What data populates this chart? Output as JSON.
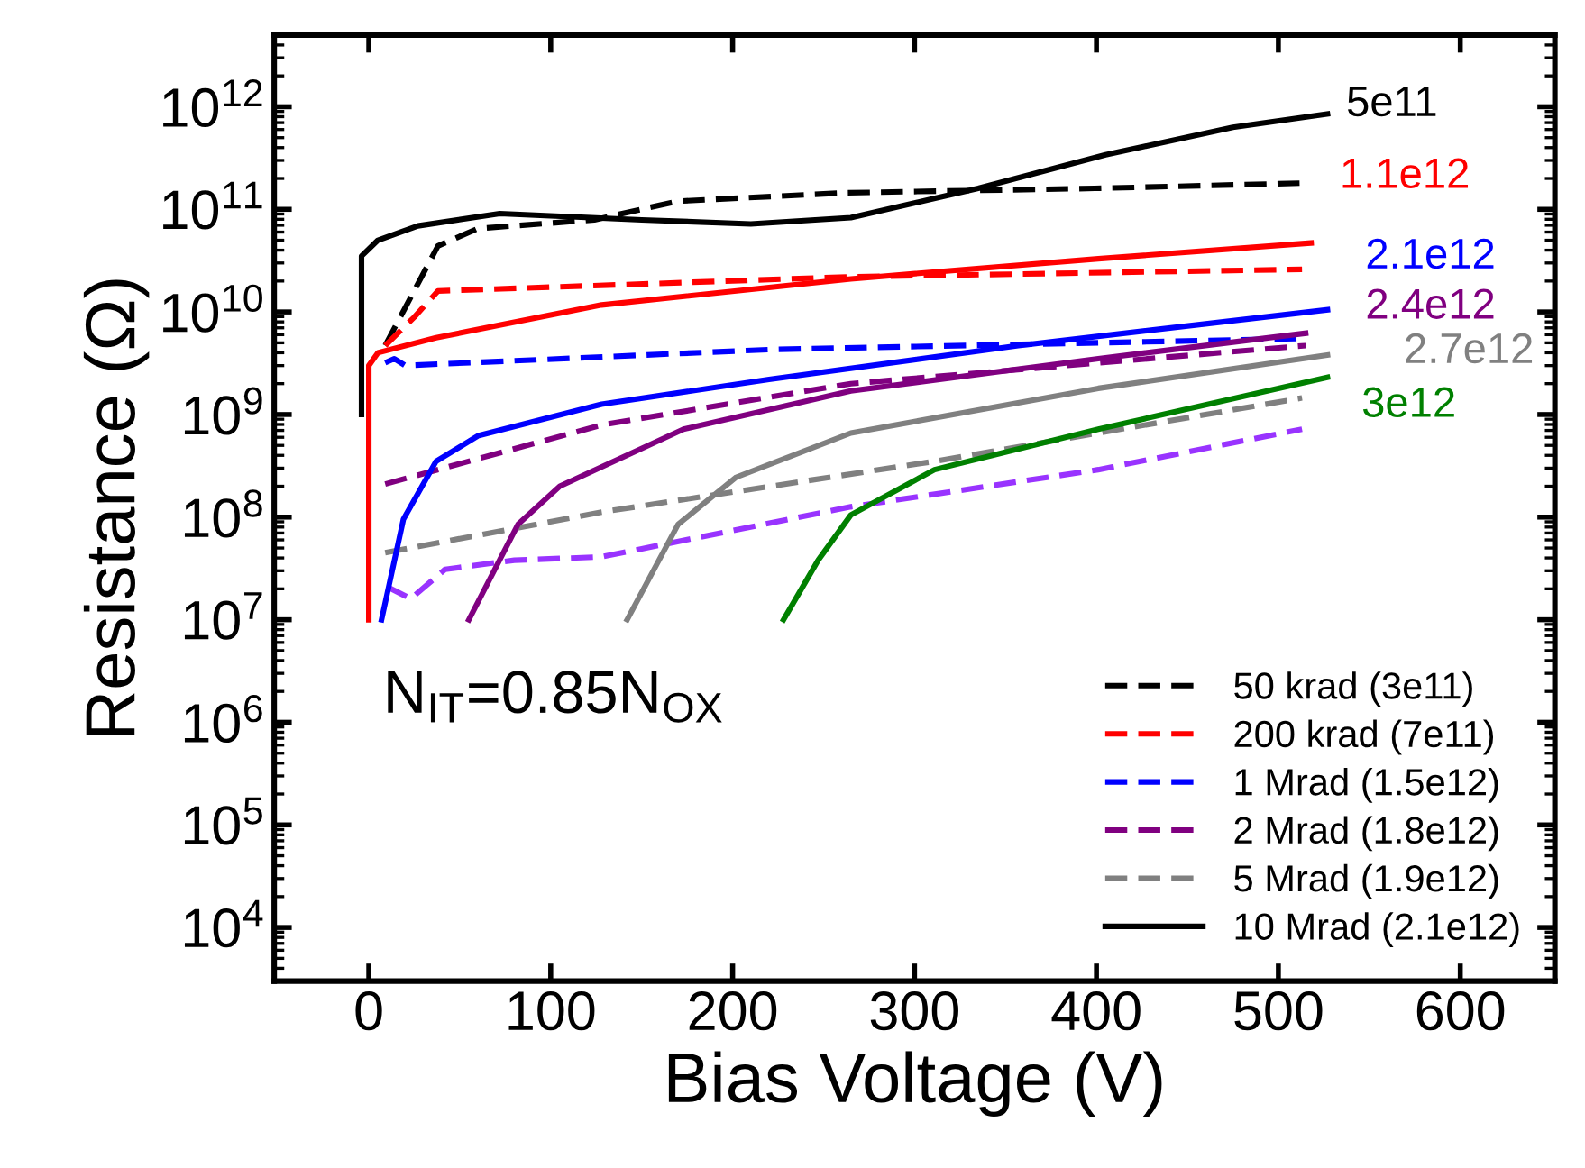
{
  "chart_data": {
    "type": "line",
    "xlabel": "Bias Voltage (V)",
    "ylabel": "Resistance (Ω)",
    "log": "y",
    "grid": false,
    "legend": "bottom right",
    "marker": "none",
    "xlim": [
      -52,
      652
    ],
    "xticks": [
      0,
      100,
      200,
      300,
      400,
      500,
      600
    ],
    "ylim": [
      3000,
      5000000000000
    ],
    "yticks": [
      {
        "value": 10000,
        "label": "10$^{4}$"
      },
      {
        "value": 100000,
        "label": "10$^{5}$"
      },
      {
        "value": 1000000,
        "label": "10$^{6}$"
      },
      {
        "value": 10000000,
        "label": "10$^{7}$"
      },
      {
        "value": 100000000,
        "label": "10$^{8}$"
      },
      {
        "value": 1000000000,
        "label": "10$^{9}$"
      },
      {
        "value": 10000000000,
        "label": "10$^{10}$"
      },
      {
        "value": 100000000000,
        "label": "10$^{11}$"
      },
      {
        "value": 1000000000000,
        "label": "10$^{12}$"
      }
    ],
    "series": [
      {
        "name": "50 krad (3e11)",
        "color": "#000000",
        "line_style": "dashed",
        "x": [
          9,
          38,
          60,
          124,
          170,
          262,
          399,
          513
        ],
        "values": [
          4700000000.0,
          44000000000.0,
          65000000000.0,
          79000000000.0,
          120000000000.0,
          145000000000.0,
          160000000000.0,
          180000000000.0
        ]
      },
      {
        "name": "200 krad (7e11)",
        "color": "#ff0000",
        "line_style": "dashed",
        "x": [
          9,
          25,
          38,
          265,
          513
        ],
        "values": [
          4700000000.0,
          8900000000.0,
          16000000000.0,
          22000000000.0,
          26000000000.0
        ]
      },
      {
        "name": "1 Mrad (1.5e12)",
        "color": "#0000ff",
        "line_style": "dashed",
        "x": [
          9,
          14,
          20,
          221,
          513
        ],
        "values": [
          3200000000.0,
          3500000000.0,
          3000000000.0,
          4300000000.0,
          5500000000.0
        ]
      },
      {
        "name": "2 Mrad (1.8e12)",
        "color": "#800080",
        "line_style": "dashed",
        "x": [
          9,
          128,
          265,
          515
        ],
        "values": [
          210000000.0,
          790000000.0,
          2000000000.0,
          4700000000.0
        ]
      },
      {
        "name": "5 Mrad (1.9e12)",
        "color": "#808080",
        "line_style": "dashed",
        "x": [
          9,
          128,
          311,
          513
        ],
        "values": [
          45000000.0,
          112000000.0,
          350000000.0,
          1450000000.0
        ]
      },
      {
        "color": "#9933ff",
        "line_style": "dashed",
        "x": [
          10,
          23,
          42,
          80,
          128,
          265,
          401,
          513
        ],
        "values": [
          21000000.0,
          16000000.0,
          31000000.0,
          38000000.0,
          41000000.0,
          126000000.0,
          290000000.0,
          720000000.0
        ]
      },
      {
        "name": "10 Mrad (2.1e12)",
        "color": "#000000",
        "line_style": "solid",
        "x": [
          -4,
          -4,
          5,
          27,
          72,
          150,
          210,
          265,
          335,
          405,
          475,
          527
        ],
        "values": [
          1000000000.0,
          35000000000.0,
          50000000000.0,
          69000000000.0,
          91000000000.0,
          79000000000.0,
          72000000000.0,
          83000000000.0,
          160000000000.0,
          340000000000.0,
          630000000000.0,
          850000000000.0
        ]
      },
      {
        "color": "#ff0000",
        "line_style": "solid",
        "x": [
          0,
          0,
          5,
          37,
          128,
          265,
          401,
          518
        ],
        "values": [
          10000000.0,
          3000000000.0,
          4000000000.0,
          5600000000.0,
          11700000000.0,
          21000000000.0,
          33000000000.0,
          47000000000.0
        ]
      },
      {
        "color": "#0000ff",
        "line_style": "solid",
        "x": [
          7,
          19,
          37,
          60,
          128,
          220,
          357,
          527
        ],
        "values": [
          10000000.0,
          95000000.0,
          350000000.0,
          620000000.0,
          1260000000.0,
          2200000000.0,
          4700000000.0,
          10500000000.0
        ]
      },
      {
        "color": "#800080",
        "line_style": "solid",
        "x": [
          55,
          82,
          105,
          173,
          265,
          401,
          515
        ],
        "values": [
          10000000.0,
          85000000.0,
          200000000.0,
          720000000.0,
          1700000000.0,
          3500000000.0,
          6200000000.0
        ]
      },
      {
        "color": "#808080",
        "line_style": "solid",
        "x": [
          142,
          170,
          202,
          265,
          401,
          527
        ],
        "values": [
          10000000.0,
          85000000.0,
          245000000.0,
          660000000.0,
          1800000000.0,
          3800000000.0
        ]
      },
      {
        "color": "#008000",
        "line_style": "solid",
        "x": [
          228,
          247,
          265,
          311,
          401,
          527
        ],
        "values": [
          10000000.0,
          38000000.0,
          105000000.0,
          290000000.0,
          720000000.0,
          2300000000.0
        ]
      }
    ],
    "annotations": [
      "5e11",
      "1.1e12",
      "2.1e12",
      "2.4e12",
      "2.7e12",
      "3e12",
      "N$_{IT}$=0.85N$_{OX}$"
    ]
  }
}
